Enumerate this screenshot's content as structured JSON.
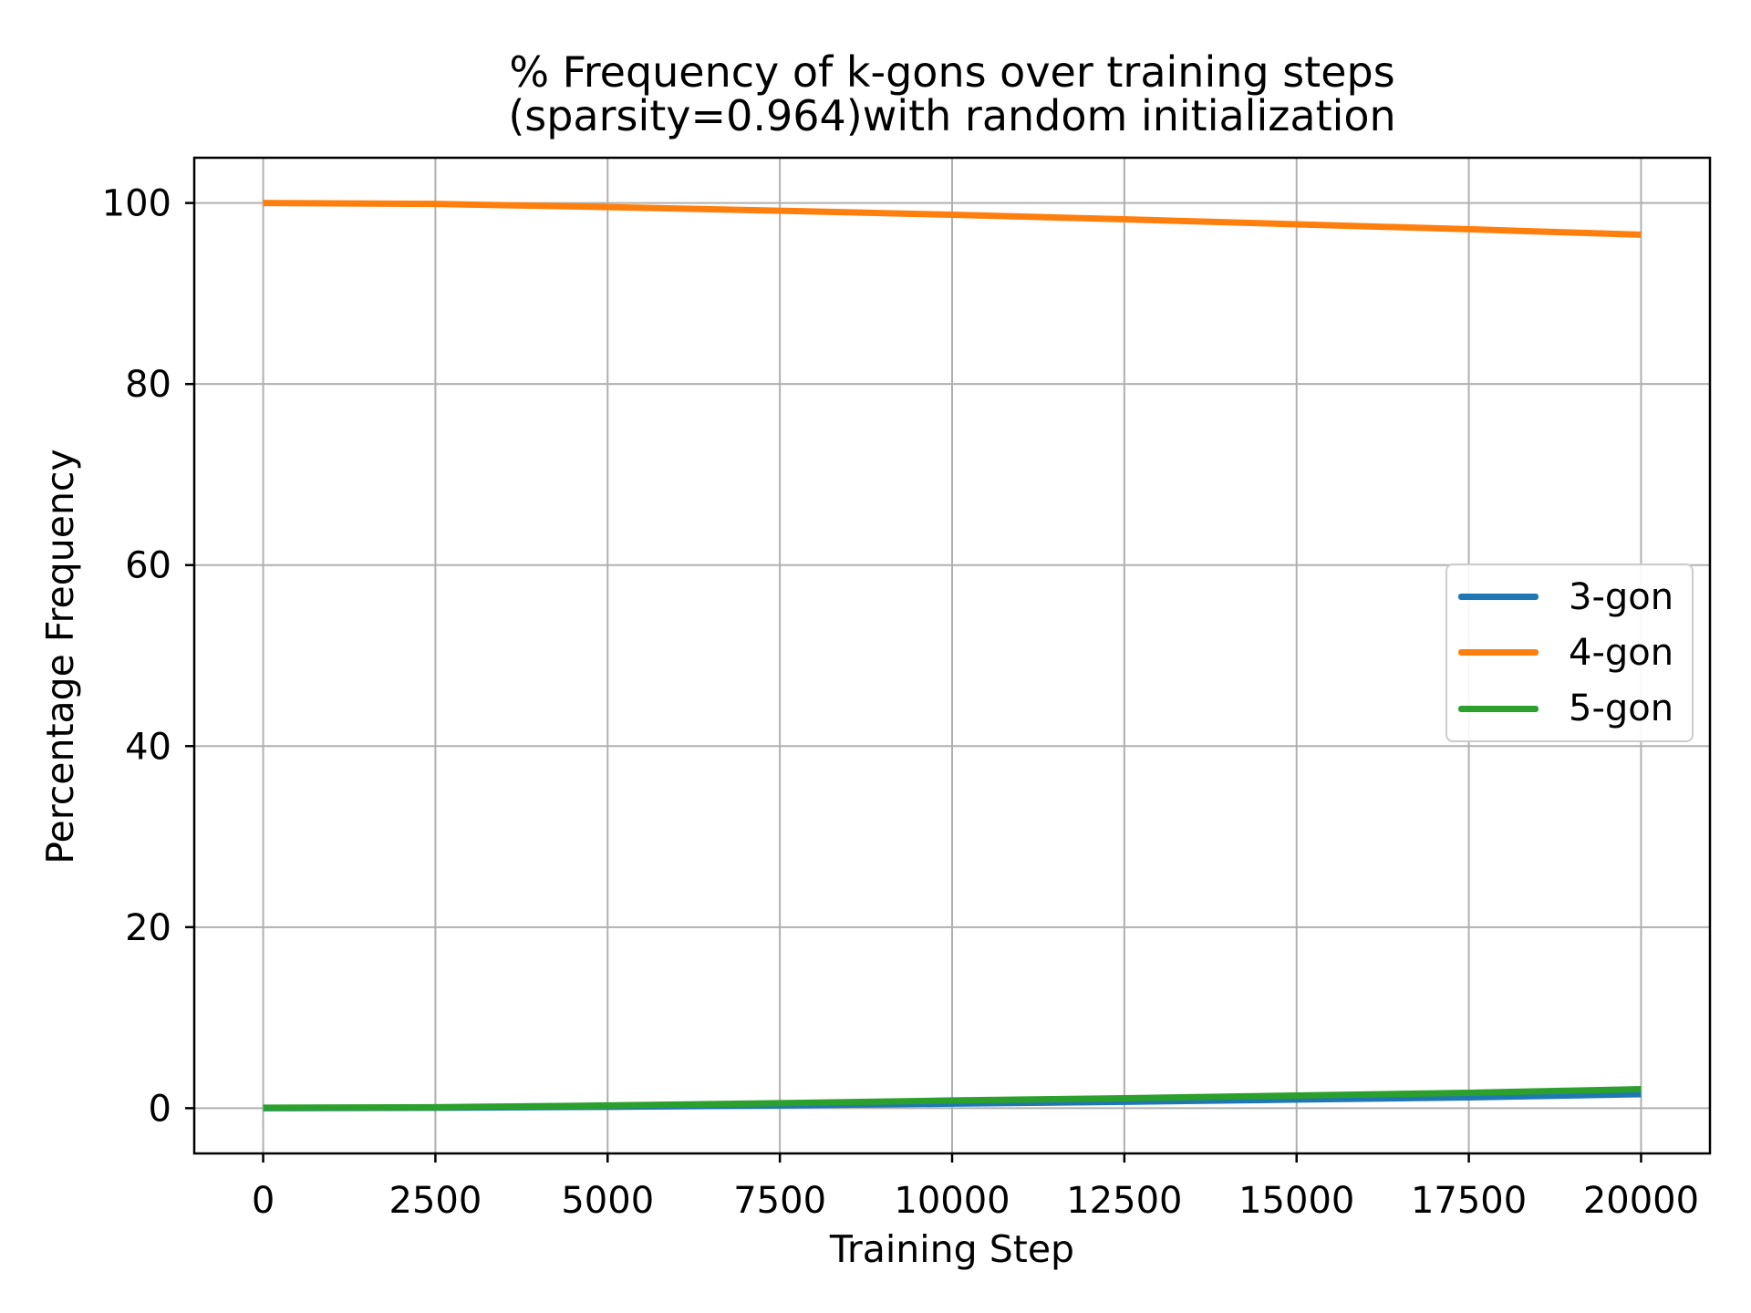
{
  "chart": {
    "title_line1": "% Frequency of k-gons over training steps",
    "title_line2": "(sparsity=0.964)with random initialization",
    "xlabel": "Training Step",
    "ylabel": "Percentage Frequency"
  },
  "chart_data": {
    "type": "line",
    "title": "% Frequency of k-gons over training steps\n(sparsity=0.964)with random initialization",
    "xlabel": "Training Step",
    "ylabel": "Percentage Frequency",
    "x": [
      0,
      2500,
      5000,
      7500,
      10000,
      12500,
      15000,
      17500,
      20000
    ],
    "series": [
      {
        "name": "3-gon",
        "color": "#1f77b4",
        "values": [
          0.0,
          0.05,
          0.15,
          0.3,
          0.5,
          0.7,
          0.95,
          1.2,
          1.55
        ]
      },
      {
        "name": "4-gon",
        "color": "#ff7f0e",
        "values": [
          100.0,
          99.9,
          99.55,
          99.15,
          98.7,
          98.2,
          97.65,
          97.1,
          96.5
        ]
      },
      {
        "name": "5-gon",
        "color": "#2ca02c",
        "values": [
          0.05,
          0.1,
          0.3,
          0.55,
          0.85,
          1.1,
          1.4,
          1.7,
          2.1
        ]
      }
    ],
    "xlim": [
      -1000,
      21000
    ],
    "ylim": [
      -5,
      105
    ],
    "xticks": [
      0,
      2500,
      5000,
      7500,
      10000,
      12500,
      15000,
      17500,
      20000
    ],
    "xtick_labels": [
      "0",
      "2500",
      "5000",
      "7500",
      "10000",
      "12500",
      "15000",
      "17500",
      "20000"
    ],
    "yticks": [
      0,
      20,
      40,
      60,
      80,
      100
    ],
    "ytick_labels": [
      "0",
      "20",
      "40",
      "60",
      "80",
      "100"
    ],
    "grid": true,
    "legend_position": "center right",
    "colors": {
      "grid": "#b0b0b0",
      "axis_frame": "#000000",
      "text": "#000000",
      "legend_border": "#cccccc"
    }
  }
}
